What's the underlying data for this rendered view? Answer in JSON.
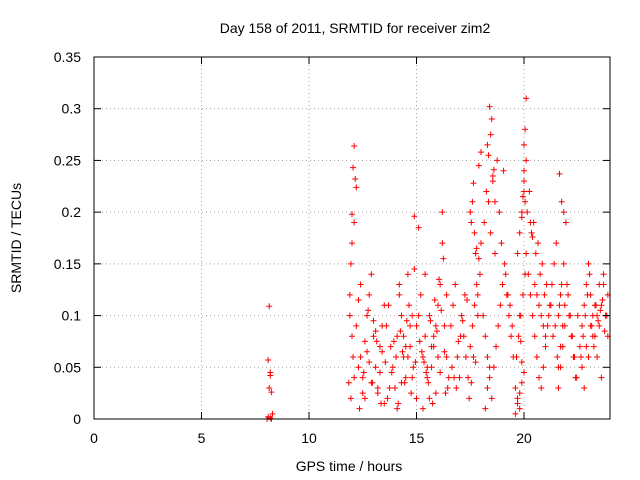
{
  "chart_data": {
    "type": "scatter",
    "title": "Day 158 of 2011, SRMTID for receiver zim2",
    "xlabel": "GPS time / hours",
    "ylabel": "SRMTID / TECUs",
    "xlim": [
      0,
      24
    ],
    "ylim": [
      0,
      0.35
    ],
    "xticks": [
      0,
      5,
      10,
      15,
      20
    ],
    "xtick_labels": [
      "0",
      "5",
      "10",
      "15",
      "20"
    ],
    "yticks": [
      0,
      0.05,
      0.1,
      0.15,
      0.2,
      0.25,
      0.3,
      0.35
    ],
    "ytick_labels": [
      "0",
      "0.05",
      "0.1",
      "0.15",
      "0.2",
      "0.25",
      "0.3",
      "0.35"
    ],
    "grid": true,
    "marker": "+",
    "color": "#ff0000",
    "series": [
      {
        "name": "SRMTID",
        "x": [
          8.05,
          8.1,
          8.15,
          8.2,
          8.1,
          8.15,
          8.2,
          8.25,
          8.3,
          8.25,
          8.2,
          11.85,
          11.9,
          11.95,
          12.0,
          12.05,
          12.1,
          12.15,
          12.2,
          11.9,
          12.0,
          12.1,
          12.0,
          12.05,
          12.1,
          11.95,
          12.2,
          12.3,
          12.4,
          12.5,
          12.6,
          12.7,
          12.8,
          12.9,
          13.0,
          13.1,
          13.2,
          13.3,
          13.4,
          13.5,
          12.3,
          12.5,
          12.7,
          12.9,
          13.1,
          13.3,
          13.5,
          12.4,
          12.6,
          12.8,
          13.0,
          13.2,
          13.4,
          12.35,
          12.55,
          12.75,
          12.95,
          13.15,
          13.35,
          13.55,
          13.6,
          13.7,
          13.8,
          13.9,
          14.0,
          14.1,
          14.2,
          14.3,
          14.4,
          14.5,
          14.6,
          14.7,
          14.8,
          14.9,
          15.0,
          13.65,
          13.85,
          14.05,
          14.25,
          14.45,
          14.65,
          14.85,
          13.75,
          13.95,
          14.15,
          14.35,
          14.55,
          14.75,
          14.95,
          14.2,
          14.4,
          14.6,
          14.8,
          15.0,
          14.1,
          14.3,
          14.5,
          14.7,
          14.9,
          15.1,
          15.2,
          15.3,
          15.4,
          15.5,
          15.6,
          15.7,
          15.8,
          15.9,
          16.0,
          16.1,
          16.2,
          16.3,
          16.4,
          16.5,
          15.15,
          15.35,
          15.55,
          15.75,
          15.95,
          16.15,
          16.35,
          15.25,
          15.45,
          15.65,
          15.85,
          16.05,
          16.25,
          16.45,
          15.3,
          15.5,
          15.7,
          15.9,
          16.1,
          16.3,
          15.1,
          15.4,
          15.6,
          15.8,
          16.0,
          16.2,
          16.4,
          16.6,
          16.7,
          16.8,
          16.9,
          17.0,
          17.1,
          17.2,
          17.3,
          17.4,
          17.5,
          17.6,
          17.7,
          17.8,
          17.9,
          18.0,
          16.65,
          16.85,
          17.05,
          17.25,
          17.45,
          17.65,
          17.85,
          16.75,
          16.95,
          17.15,
          17.35,
          17.55,
          17.75,
          17.95,
          17.5,
          17.6,
          17.7,
          17.8,
          17.9,
          18.0,
          17.55,
          17.65,
          17.75,
          17.85,
          18.1,
          18.2,
          18.3,
          18.4,
          18.5,
          18.6,
          18.7,
          18.8,
          18.9,
          19.0,
          19.1,
          19.2,
          19.3,
          19.4,
          19.5,
          18.15,
          18.35,
          18.55,
          18.75,
          18.95,
          19.15,
          19.35,
          18.25,
          18.45,
          18.65,
          18.85,
          19.05,
          19.25,
          19.45,
          18.3,
          18.4,
          18.5,
          18.6,
          18.35,
          18.45,
          18.55,
          18.65,
          18.2,
          18.3,
          18.4,
          19.6,
          19.7,
          19.8,
          19.9,
          20.0,
          19.65,
          19.75,
          19.85,
          19.95,
          20.05,
          19.7,
          19.8,
          19.9,
          20.0,
          20.1,
          20.0,
          20.05,
          20.1,
          20.0,
          20.05,
          19.9,
          19.95,
          20.0,
          19.8,
          19.85,
          19.9,
          19.6,
          19.7,
          19.8,
          20.1,
          20.2,
          20.3,
          20.4,
          20.5,
          20.6,
          20.7,
          20.8,
          20.9,
          21.0,
          21.1,
          21.2,
          21.3,
          21.4,
          21.5,
          20.15,
          20.35,
          20.55,
          20.75,
          20.95,
          21.15,
          21.35,
          20.25,
          20.45,
          20.65,
          20.85,
          21.05,
          21.25,
          21.45,
          20.3,
          20.4,
          20.5,
          20.6,
          20.7,
          20.8,
          20.9,
          21.0,
          21.6,
          21.7,
          21.8,
          21.9,
          22.0,
          22.1,
          22.2,
          22.3,
          22.4,
          22.5,
          21.65,
          21.75,
          21.85,
          21.95,
          22.05,
          22.15,
          22.25,
          22.35,
          22.45,
          21.6,
          21.7,
          21.8,
          21.9,
          21.65,
          21.75,
          21.85,
          21.55,
          21.6,
          21.7,
          22.6,
          22.7,
          22.8,
          22.9,
          23.0,
          23.1,
          23.2,
          23.3,
          23.4,
          23.5,
          23.6,
          23.7,
          23.8,
          23.9,
          22.65,
          22.75,
          22.85,
          22.95,
          23.05,
          23.15,
          23.25,
          23.35,
          23.45,
          23.55,
          23.65,
          23.75,
          23.85,
          22.7,
          22.9,
          23.1,
          23.3,
          23.5,
          23.7,
          23.9,
          22.8,
          23.0,
          23.2,
          23.4,
          23.6,
          23.8
        ],
        "y": [
          0.0,
          0.002,
          0.03,
          0.045,
          0.057,
          0.109,
          0.042,
          0.026,
          0.005,
          0.0,
          0.001,
          0.035,
          0.1,
          0.15,
          0.198,
          0.243,
          0.264,
          0.232,
          0.224,
          0.12,
          0.17,
          0.19,
          0.08,
          0.06,
          0.04,
          0.02,
          0.09,
          0.115,
          0.06,
          0.04,
          0.02,
          0.1,
          0.12,
          0.14,
          0.08,
          0.05,
          0.03,
          0.07,
          0.09,
          0.11,
          0.05,
          0.025,
          0.065,
          0.035,
          0.085,
          0.045,
          0.015,
          0.13,
          0.075,
          0.055,
          0.095,
          0.025,
          0.065,
          0.01,
          0.045,
          0.105,
          0.035,
          0.075,
          0.015,
          0.055,
          0.09,
          0.11,
          0.07,
          0.05,
          0.03,
          0.08,
          0.12,
          0.1,
          0.06,
          0.04,
          0.14,
          0.07,
          0.1,
          0.196,
          0.09,
          0.02,
          0.045,
          0.06,
          0.085,
          0.035,
          0.11,
          0.05,
          0.03,
          0.075,
          0.015,
          0.065,
          0.095,
          0.025,
          0.055,
          0.13,
          0.08,
          0.06,
          0.04,
          0.02,
          0.01,
          0.035,
          0.07,
          0.09,
          0.145,
          0.1,
          0.12,
          0.06,
          0.08,
          0.04,
          0.02,
          0.05,
          0.07,
          0.09,
          0.11,
          0.13,
          0.17,
          0.09,
          0.06,
          0.04,
          0.075,
          0.055,
          0.035,
          0.015,
          0.085,
          0.105,
          0.025,
          0.065,
          0.045,
          0.095,
          0.115,
          0.135,
          0.155,
          0.03,
          0.01,
          0.05,
          0.07,
          0.025,
          0.045,
          0.065,
          0.185,
          0.14,
          0.1,
          0.08,
          0.06,
          0.2,
          0.12,
          0.09,
          0.11,
          0.13,
          0.06,
          0.04,
          0.1,
          0.08,
          0.06,
          0.04,
          0.07,
          0.09,
          0.11,
          0.13,
          0.155,
          0.17,
          0.05,
          0.03,
          0.08,
          0.12,
          0.02,
          0.06,
          0.1,
          0.04,
          0.075,
          0.095,
          0.115,
          0.035,
          0.055,
          0.14,
          0.2,
          0.21,
          0.18,
          0.165,
          0.245,
          0.258,
          0.19,
          0.228,
          0.16,
          0.12,
          0.1,
          0.08,
          0.06,
          0.04,
          0.02,
          0.05,
          0.07,
          0.09,
          0.11,
          0.13,
          0.15,
          0.12,
          0.1,
          0.08,
          0.06,
          0.19,
          0.21,
          0.23,
          0.25,
          0.17,
          0.14,
          0.11,
          0.22,
          0.18,
          0.16,
          0.2,
          0.24,
          0.12,
          0.09,
          0.265,
          0.302,
          0.29,
          0.241,
          0.255,
          0.275,
          0.235,
          0.21,
          0.01,
          0.03,
          0.05,
          0.005,
          0.015,
          0.025,
          0.035,
          0.045,
          0.06,
          0.08,
          0.1,
          0.12,
          0.14,
          0.16,
          0.18,
          0.2,
          0.22,
          0.25,
          0.265,
          0.28,
          0.31,
          0.24,
          0.21,
          0.195,
          0.215,
          0.23,
          0.1,
          0.075,
          0.055,
          0.03,
          0.02,
          0.01,
          0.16,
          0.14,
          0.12,
          0.1,
          0.08,
          0.06,
          0.04,
          0.03,
          0.05,
          0.07,
          0.09,
          0.11,
          0.13,
          0.15,
          0.17,
          0.2,
          0.18,
          0.16,
          0.14,
          0.12,
          0.1,
          0.08,
          0.22,
          0.19,
          0.17,
          0.15,
          0.13,
          0.11,
          0.09,
          0.19,
          0.176,
          0.13,
          0.12,
          0.11,
          0.1,
          0.09,
          0.08,
          0.05,
          0.07,
          0.09,
          0.11,
          0.13,
          0.1,
          0.08,
          0.06,
          0.04,
          0.1,
          0.237,
          0.21,
          0.2,
          0.19,
          0.12,
          0.1,
          0.08,
          0.06,
          0.04,
          0.03,
          0.05,
          0.07,
          0.09,
          0.11,
          0.13,
          0.15,
          0.06,
          0.1,
          0.12,
          0.07,
          0.09,
          0.11,
          0.13,
          0.15,
          0.12,
          0.1,
          0.08,
          0.06,
          0.09,
          0.11,
          0.13,
          0.1,
          0.08,
          0.06,
          0.08,
          0.1,
          0.12,
          0.14,
          0.09,
          0.07,
          0.11,
          0.095,
          0.105,
          0.115,
          0.085,
          0.1,
          0.05,
          0.07,
          0.09,
          0.11,
          0.13,
          0.14,
          0.12,
          0.03,
          0.06,
          0.08,
          0.1,
          0.04,
          0.1
        ]
      }
    ]
  }
}
